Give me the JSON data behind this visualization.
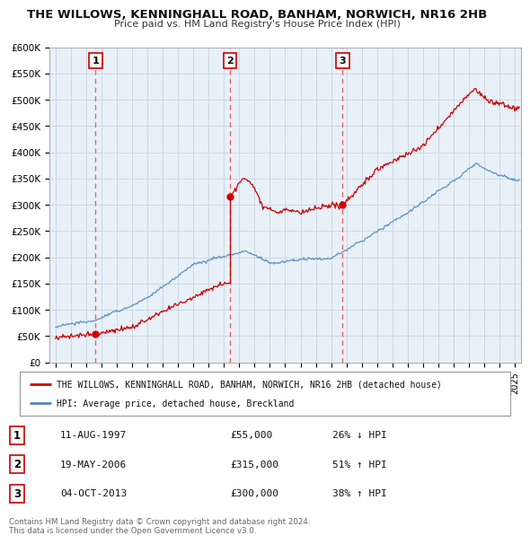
{
  "title": "THE WILLOWS, KENNINGHALL ROAD, BANHAM, NORWICH, NR16 2HB",
  "subtitle": "Price paid vs. HM Land Registry's House Price Index (HPI)",
  "ylabel_ticks": [
    "£0",
    "£50K",
    "£100K",
    "£150K",
    "£200K",
    "£250K",
    "£300K",
    "£350K",
    "£400K",
    "£450K",
    "£500K",
    "£550K",
    "£600K"
  ],
  "ytick_vals": [
    0,
    50000,
    100000,
    150000,
    200000,
    250000,
    300000,
    350000,
    400000,
    450000,
    500000,
    550000,
    600000
  ],
  "xlim": [
    1994.6,
    2025.4
  ],
  "ylim": [
    0,
    600000
  ],
  "sale_dates": [
    1997.61,
    2006.38,
    2013.75
  ],
  "sale_prices": [
    55000,
    315000,
    300000
  ],
  "sale_labels": [
    "1",
    "2",
    "3"
  ],
  "red_line_color": "#cc0000",
  "blue_line_color": "#5588bb",
  "plot_bg_color": "#e8f0f8",
  "dashed_color": "#ee6666",
  "marker_color": "#cc0000",
  "legend_line1": "THE WILLOWS, KENNINGHALL ROAD, BANHAM, NORWICH, NR16 2HB (detached house)",
  "legend_line2": "HPI: Average price, detached house, Breckland",
  "table_data": [
    [
      "1",
      "11-AUG-1997",
      "£55,000",
      "26% ↓ HPI"
    ],
    [
      "2",
      "19-MAY-2006",
      "£315,000",
      "51% ↑ HPI"
    ],
    [
      "3",
      "04-OCT-2013",
      "£300,000",
      "38% ↑ HPI"
    ]
  ],
  "footnote": "Contains HM Land Registry data © Crown copyright and database right 2024.\nThis data is licensed under the Open Government Licence v3.0.",
  "background_color": "#ffffff",
  "grid_color": "#c8d4e0"
}
